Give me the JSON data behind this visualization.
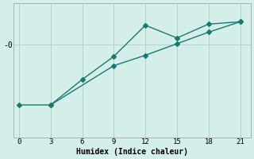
{
  "xlabel": "Humidex (Indice chaleur)",
  "ylabel": "-0",
  "background_color": "#d4eeea",
  "line_color": "#1a7a6e",
  "x_ticks": [
    0,
    3,
    6,
    9,
    12,
    15,
    18,
    21
  ],
  "xlim": [
    -0.5,
    22
  ],
  "ylim": [
    -4.0,
    1.8
  ],
  "line1_x": [
    3,
    6,
    9,
    12,
    15,
    18,
    21
  ],
  "line1_y": [
    -2.6,
    -1.5,
    -0.5,
    0.85,
    0.3,
    0.9,
    1.0
  ],
  "line2_x": [
    0,
    3,
    9,
    12,
    15,
    18,
    21
  ],
  "line2_y": [
    -2.6,
    -2.6,
    -0.9,
    -0.45,
    0.05,
    0.55,
    1.0
  ],
  "grid_color": "#b0cec8",
  "marker": "D",
  "markersize": 3,
  "linewidth": 1.0
}
